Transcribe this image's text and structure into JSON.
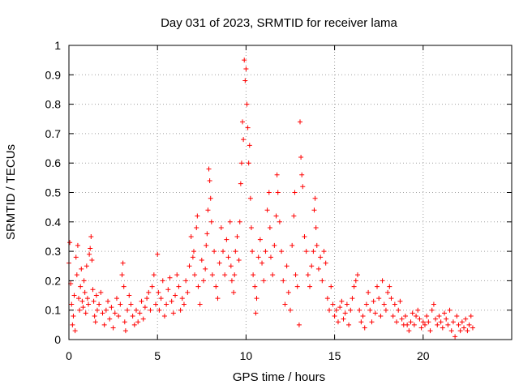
{
  "chart_data": {
    "type": "scatter",
    "title": "Day 031 of 2023, SRMTID for receiver lama",
    "xlabel": "GPS time / hours",
    "ylabel": "SRMTID / TECUs",
    "xlim": [
      0,
      25
    ],
    "ylim": [
      0,
      1
    ],
    "xticks": [
      0,
      5,
      10,
      15,
      20
    ],
    "xtick_labels": [
      "0",
      "5",
      "10",
      "15",
      "20"
    ],
    "yticks": [
      0,
      0.1,
      0.2,
      0.3,
      0.4,
      0.5,
      0.6,
      0.7,
      0.8,
      0.9,
      1
    ],
    "ytick_labels": [
      "0",
      "0.1",
      "0.2",
      "0.3",
      "0.4",
      "0.5",
      "0.6",
      "0.7",
      "0.8",
      "0.9",
      "1"
    ],
    "grid": true,
    "marker": "+",
    "color": "#ff0000",
    "series": [
      {
        "name": "SRMTID",
        "points": [
          [
            0.0,
            0.26
          ],
          [
            0.05,
            0.33
          ],
          [
            0.1,
            0.19
          ],
          [
            0.15,
            0.12
          ],
          [
            0.2,
            0.05
          ],
          [
            0.25,
            0.08
          ],
          [
            0.3,
            0.15
          ],
          [
            0.35,
            0.03
          ],
          [
            0.4,
            0.28
          ],
          [
            0.45,
            0.22
          ],
          [
            0.5,
            0.32
          ],
          [
            0.55,
            0.14
          ],
          [
            0.6,
            0.1
          ],
          [
            0.65,
            0.18
          ],
          [
            0.7,
            0.24
          ],
          [
            0.75,
            0.13
          ],
          [
            0.8,
            0.11
          ],
          [
            0.85,
            0.2
          ],
          [
            0.9,
            0.16
          ],
          [
            0.95,
            0.09
          ],
          [
            1.0,
            0.25
          ],
          [
            1.05,
            0.14
          ],
          [
            1.1,
            0.12
          ],
          [
            1.15,
            0.29
          ],
          [
            1.2,
            0.31
          ],
          [
            1.25,
            0.35
          ],
          [
            1.3,
            0.27
          ],
          [
            1.35,
            0.17
          ],
          [
            1.4,
            0.13
          ],
          [
            1.45,
            0.08
          ],
          [
            1.5,
            0.06
          ],
          [
            1.55,
            0.15
          ],
          [
            1.6,
            0.1
          ],
          [
            1.7,
            0.12
          ],
          [
            1.8,
            0.16
          ],
          [
            1.9,
            0.09
          ],
          [
            2.0,
            0.05
          ],
          [
            2.1,
            0.1
          ],
          [
            2.2,
            0.13
          ],
          [
            2.3,
            0.07
          ],
          [
            2.4,
            0.11
          ],
          [
            2.5,
            0.04
          ],
          [
            2.6,
            0.09
          ],
          [
            2.7,
            0.14
          ],
          [
            2.8,
            0.08
          ],
          [
            2.9,
            0.12
          ],
          [
            3.0,
            0.22
          ],
          [
            3.05,
            0.26
          ],
          [
            3.1,
            0.18
          ],
          [
            3.15,
            0.06
          ],
          [
            3.2,
            0.03
          ],
          [
            3.3,
            0.1
          ],
          [
            3.4,
            0.15
          ],
          [
            3.5,
            0.12
          ],
          [
            3.6,
            0.08
          ],
          [
            3.7,
            0.05
          ],
          [
            3.8,
            0.1
          ],
          [
            3.9,
            0.06
          ],
          [
            4.0,
            0.09
          ],
          [
            4.1,
            0.13
          ],
          [
            4.2,
            0.07
          ],
          [
            4.3,
            0.11
          ],
          [
            4.4,
            0.14
          ],
          [
            4.5,
            0.16
          ],
          [
            4.6,
            0.1
          ],
          [
            4.7,
            0.18
          ],
          [
            4.8,
            0.22
          ],
          [
            4.9,
            0.12
          ],
          [
            5.0,
            0.29
          ],
          [
            5.05,
            0.16
          ],
          [
            5.1,
            0.1
          ],
          [
            5.2,
            0.14
          ],
          [
            5.3,
            0.2
          ],
          [
            5.4,
            0.08
          ],
          [
            5.5,
            0.12
          ],
          [
            5.6,
            0.17
          ],
          [
            5.7,
            0.21
          ],
          [
            5.8,
            0.13
          ],
          [
            5.9,
            0.09
          ],
          [
            6.0,
            0.15
          ],
          [
            6.1,
            0.22
          ],
          [
            6.2,
            0.18
          ],
          [
            6.3,
            0.1
          ],
          [
            6.4,
            0.14
          ],
          [
            6.5,
            0.12
          ],
          [
            6.6,
            0.2
          ],
          [
            6.7,
            0.16
          ],
          [
            6.8,
            0.25
          ],
          [
            6.9,
            0.35
          ],
          [
            7.0,
            0.28
          ],
          [
            7.05,
            0.3
          ],
          [
            7.1,
            0.22
          ],
          [
            7.2,
            0.38
          ],
          [
            7.25,
            0.42
          ],
          [
            7.3,
            0.18
          ],
          [
            7.4,
            0.12
          ],
          [
            7.5,
            0.27
          ],
          [
            7.6,
            0.2
          ],
          [
            7.7,
            0.24
          ],
          [
            7.75,
            0.32
          ],
          [
            7.8,
            0.36
          ],
          [
            7.85,
            0.44
          ],
          [
            7.9,
            0.58
          ],
          [
            7.95,
            0.54
          ],
          [
            8.0,
            0.48
          ],
          [
            8.05,
            0.4
          ],
          [
            8.1,
            0.22
          ],
          [
            8.2,
            0.3
          ],
          [
            8.3,
            0.18
          ],
          [
            8.4,
            0.14
          ],
          [
            8.5,
            0.26
          ],
          [
            8.6,
            0.38
          ],
          [
            8.7,
            0.3
          ],
          [
            8.8,
            0.22
          ],
          [
            8.9,
            0.34
          ],
          [
            9.0,
            0.28
          ],
          [
            9.1,
            0.4
          ],
          [
            9.15,
            0.25
          ],
          [
            9.2,
            0.2
          ],
          [
            9.3,
            0.16
          ],
          [
            9.35,
            0.22
          ],
          [
            9.4,
            0.3
          ],
          [
            9.5,
            0.35
          ],
          [
            9.6,
            0.27
          ],
          [
            9.65,
            0.4
          ],
          [
            9.7,
            0.53
          ],
          [
            9.75,
            0.6
          ],
          [
            9.8,
            0.74
          ],
          [
            9.85,
            0.68
          ],
          [
            9.9,
            0.95
          ],
          [
            9.95,
            0.88
          ],
          [
            10.0,
            0.92
          ],
          [
            10.05,
            0.8
          ],
          [
            10.1,
            0.72
          ],
          [
            10.15,
            0.6
          ],
          [
            10.2,
            0.66
          ],
          [
            10.25,
            0.48
          ],
          [
            10.3,
            0.38
          ],
          [
            10.35,
            0.3
          ],
          [
            10.4,
            0.22
          ],
          [
            10.5,
            0.18
          ],
          [
            10.55,
            0.09
          ],
          [
            10.6,
            0.14
          ],
          [
            10.7,
            0.28
          ],
          [
            10.8,
            0.34
          ],
          [
            10.9,
            0.26
          ],
          [
            11.0,
            0.2
          ],
          [
            11.1,
            0.3
          ],
          [
            11.2,
            0.44
          ],
          [
            11.3,
            0.5
          ],
          [
            11.35,
            0.38
          ],
          [
            11.4,
            0.28
          ],
          [
            11.5,
            0.22
          ],
          [
            11.6,
            0.32
          ],
          [
            11.7,
            0.42
          ],
          [
            11.75,
            0.56
          ],
          [
            11.8,
            0.5
          ],
          [
            11.9,
            0.4
          ],
          [
            12.0,
            0.3
          ],
          [
            12.1,
            0.2
          ],
          [
            12.2,
            0.12
          ],
          [
            12.3,
            0.25
          ],
          [
            12.4,
            0.16
          ],
          [
            12.5,
            0.1
          ],
          [
            12.6,
            0.32
          ],
          [
            12.7,
            0.42
          ],
          [
            12.75,
            0.5
          ],
          [
            12.8,
            0.22
          ],
          [
            12.9,
            0.18
          ],
          [
            13.0,
            0.05
          ],
          [
            13.05,
            0.74
          ],
          [
            13.1,
            0.62
          ],
          [
            13.15,
            0.56
          ],
          [
            13.2,
            0.52
          ],
          [
            13.3,
            0.35
          ],
          [
            13.4,
            0.3
          ],
          [
            13.5,
            0.22
          ],
          [
            13.6,
            0.18
          ],
          [
            13.7,
            0.25
          ],
          [
            13.8,
            0.3
          ],
          [
            13.85,
            0.44
          ],
          [
            13.9,
            0.48
          ],
          [
            13.95,
            0.38
          ],
          [
            14.0,
            0.32
          ],
          [
            14.1,
            0.24
          ],
          [
            14.2,
            0.28
          ],
          [
            14.3,
            0.2
          ],
          [
            14.4,
            0.3
          ],
          [
            14.5,
            0.26
          ],
          [
            14.6,
            0.14
          ],
          [
            14.7,
            0.1
          ],
          [
            14.8,
            0.18
          ],
          [
            14.9,
            0.12
          ],
          [
            15.0,
            0.08
          ],
          [
            15.1,
            0.1
          ],
          [
            15.2,
            0.06
          ],
          [
            15.3,
            0.11
          ],
          [
            15.4,
            0.13
          ],
          [
            15.5,
            0.07
          ],
          [
            15.6,
            0.09
          ],
          [
            15.7,
            0.12
          ],
          [
            15.8,
            0.05
          ],
          [
            15.9,
            0.1
          ],
          [
            16.0,
            0.14
          ],
          [
            16.1,
            0.18
          ],
          [
            16.2,
            0.2
          ],
          [
            16.3,
            0.22
          ],
          [
            16.4,
            0.1
          ],
          [
            16.5,
            0.06
          ],
          [
            16.6,
            0.08
          ],
          [
            16.7,
            0.04
          ],
          [
            16.8,
            0.12
          ],
          [
            16.9,
            0.16
          ],
          [
            17.0,
            0.1
          ],
          [
            17.1,
            0.06
          ],
          [
            17.2,
            0.13
          ],
          [
            17.3,
            0.09
          ],
          [
            17.4,
            0.18
          ],
          [
            17.5,
            0.14
          ],
          [
            17.6,
            0.08
          ],
          [
            17.7,
            0.2
          ],
          [
            17.8,
            0.12
          ],
          [
            17.9,
            0.1
          ],
          [
            18.0,
            0.16
          ],
          [
            18.1,
            0.18
          ],
          [
            18.2,
            0.14
          ],
          [
            18.3,
            0.08
          ],
          [
            18.4,
            0.12
          ],
          [
            18.5,
            0.06
          ],
          [
            18.6,
            0.1
          ],
          [
            18.7,
            0.13
          ],
          [
            18.8,
            0.07
          ],
          [
            18.9,
            0.05
          ],
          [
            19.0,
            0.08
          ],
          [
            19.1,
            0.05
          ],
          [
            19.2,
            0.03
          ],
          [
            19.3,
            0.06
          ],
          [
            19.4,
            0.09
          ],
          [
            19.5,
            0.05
          ],
          [
            19.6,
            0.08
          ],
          [
            19.7,
            0.1
          ],
          [
            19.8,
            0.07
          ],
          [
            19.9,
            0.04
          ],
          [
            20.0,
            0.06
          ],
          [
            20.1,
            0.05
          ],
          [
            20.2,
            0.08
          ],
          [
            20.3,
            0.06
          ],
          [
            20.4,
            0.03
          ],
          [
            20.5,
            0.1
          ],
          [
            20.6,
            0.12
          ],
          [
            20.7,
            0.07
          ],
          [
            20.8,
            0.05
          ],
          [
            20.9,
            0.08
          ],
          [
            21.0,
            0.06
          ],
          [
            21.1,
            0.04
          ],
          [
            21.2,
            0.09
          ],
          [
            21.3,
            0.07
          ],
          [
            21.4,
            0.05
          ],
          [
            21.5,
            0.1
          ],
          [
            21.6,
            0.03
          ],
          [
            21.7,
            0.06
          ],
          [
            21.8,
            0.01
          ],
          [
            21.9,
            0.08
          ],
          [
            22.0,
            0.05
          ],
          [
            22.1,
            0.03
          ],
          [
            22.2,
            0.06
          ],
          [
            22.3,
            0.04
          ],
          [
            22.4,
            0.07
          ],
          [
            22.5,
            0.03
          ],
          [
            22.6,
            0.05
          ],
          [
            22.7,
            0.08
          ],
          [
            22.8,
            0.04
          ]
        ]
      }
    ]
  }
}
